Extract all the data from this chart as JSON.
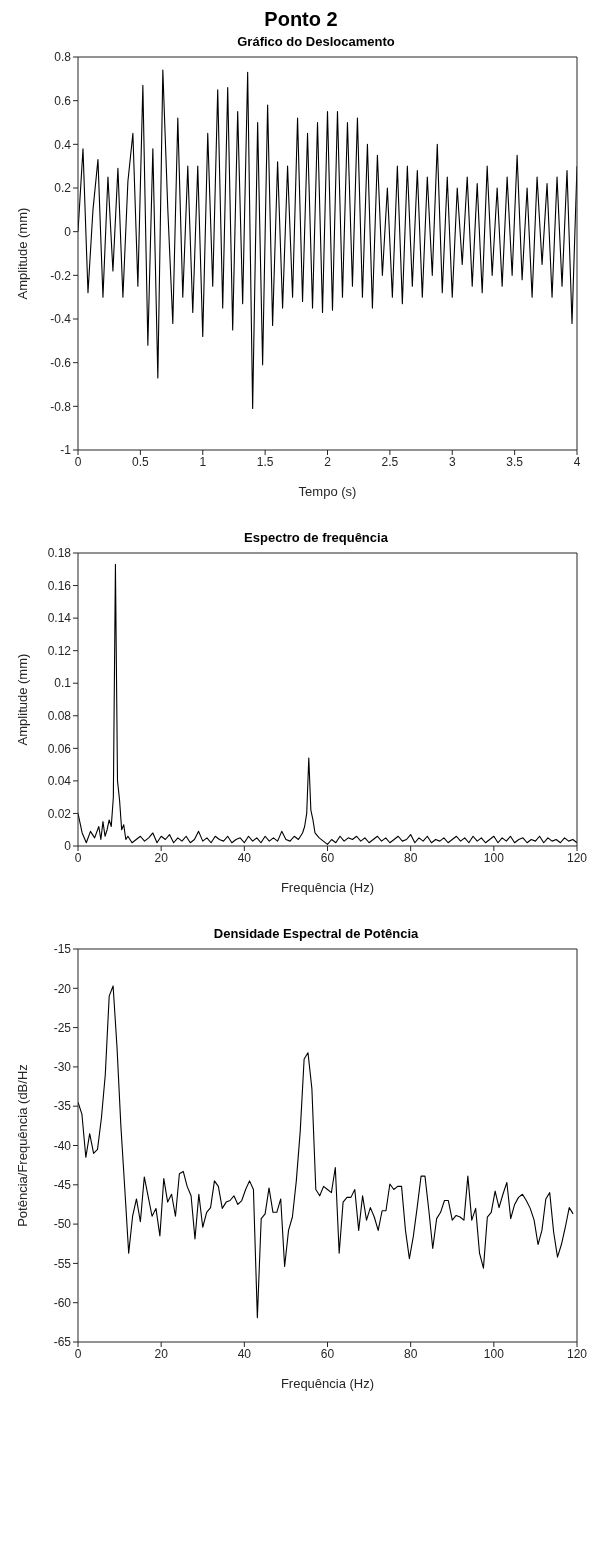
{
  "chart_data": [
    {
      "type": "line",
      "title": "Ponto 2",
      "subtitle": "Gráfico do Deslocamento",
      "xlabel": "Tempo (s)",
      "ylabel": "Amplitude (mm)",
      "xlim": [
        0,
        4
      ],
      "xticks": [
        0,
        0.5,
        1,
        1.5,
        2,
        2.5,
        3,
        3.5,
        4
      ],
      "ylim": [
        -1,
        0.8
      ],
      "yticks": [
        -1,
        -0.8,
        -0.6,
        -0.4,
        -0.2,
        0,
        0.2,
        0.4,
        0.6,
        0.8
      ],
      "x": [
        0,
        0.04,
        0.08,
        0.12,
        0.16,
        0.2,
        0.24,
        0.28,
        0.32,
        0.36,
        0.4,
        0.44,
        0.48,
        0.52,
        0.56,
        0.6,
        0.64,
        0.68,
        0.72,
        0.76,
        0.8,
        0.84,
        0.88,
        0.92,
        0.96,
        1,
        1.04,
        1.08,
        1.12,
        1.16,
        1.2,
        1.24,
        1.28,
        1.32,
        1.36,
        1.4,
        1.44,
        1.48,
        1.52,
        1.56,
        1.6,
        1.64,
        1.68,
        1.72,
        1.76,
        1.8,
        1.84,
        1.88,
        1.92,
        1.96,
        2,
        2.04,
        2.08,
        2.12,
        2.16,
        2.2,
        2.24,
        2.28,
        2.32,
        2.36,
        2.4,
        2.44,
        2.48,
        2.52,
        2.56,
        2.6,
        2.64,
        2.68,
        2.72,
        2.76,
        2.8,
        2.84,
        2.88,
        2.92,
        2.96,
        3,
        3.04,
        3.08,
        3.12,
        3.16,
        3.2,
        3.24,
        3.28,
        3.32,
        3.36,
        3.4,
        3.44,
        3.48,
        3.52,
        3.56,
        3.6,
        3.64,
        3.68,
        3.72,
        3.76,
        3.8,
        3.84,
        3.88,
        3.92,
        3.96,
        4
      ],
      "series": [
        {
          "color": "#000000",
          "values": [
            0,
            0.38,
            -0.28,
            0.1,
            0.33,
            -0.3,
            0.25,
            -0.18,
            0.29,
            -0.3,
            0.23,
            0.45,
            -0.25,
            0.67,
            -0.52,
            0.38,
            -0.67,
            0.74,
            0.1,
            -0.42,
            0.52,
            -0.3,
            0.3,
            -0.37,
            0.3,
            -0.48,
            0.45,
            -0.25,
            0.65,
            -0.35,
            0.66,
            -0.45,
            0.55,
            -0.33,
            0.73,
            -0.81,
            0.5,
            -0.61,
            0.58,
            -0.43,
            0.32,
            -0.35,
            0.3,
            -0.3,
            0.52,
            -0.32,
            0.45,
            -0.35,
            0.5,
            -0.37,
            0.55,
            -0.36,
            0.55,
            -0.3,
            0.5,
            -0.25,
            0.52,
            -0.3,
            0.4,
            -0.35,
            0.35,
            -0.2,
            0.2,
            -0.3,
            0.3,
            -0.33,
            0.3,
            -0.25,
            0.28,
            -0.3,
            0.25,
            -0.2,
            0.4,
            -0.28,
            0.25,
            -0.3,
            0.2,
            -0.15,
            0.25,
            -0.25,
            0.22,
            -0.28,
            0.3,
            -0.2,
            0.2,
            -0.25,
            0.25,
            -0.2,
            0.35,
            -0.22,
            0.2,
            -0.3,
            0.25,
            -0.15,
            0.22,
            -0.3,
            0.25,
            -0.25,
            0.28,
            -0.42,
            0.3
          ]
        }
      ]
    },
    {
      "type": "line",
      "title": "Espectro de frequência",
      "xlabel": "Frequência (Hz)",
      "ylabel": "Amplitude (mm)",
      "xlim": [
        0,
        120
      ],
      "xticks": [
        0,
        20,
        40,
        60,
        80,
        100,
        120
      ],
      "ylim": [
        0,
        0.18
      ],
      "yticks": [
        0,
        0.02,
        0.04,
        0.06,
        0.08,
        0.1,
        0.12,
        0.14,
        0.16,
        0.18
      ],
      "x": [
        0,
        1,
        2,
        3,
        4,
        5,
        5.5,
        6,
        6.5,
        7,
        7.5,
        8,
        8.5,
        9,
        9.5,
        10,
        10.5,
        11,
        11.5,
        12,
        13,
        14,
        15,
        16,
        17,
        18,
        19,
        20,
        21,
        22,
        23,
        24,
        25,
        26,
        27,
        28,
        29,
        30,
        31,
        32,
        33,
        34,
        35,
        36,
        37,
        38,
        39,
        40,
        41,
        42,
        43,
        44,
        45,
        46,
        47,
        48,
        49,
        50,
        51,
        52,
        53,
        54,
        54.5,
        55,
        55.5,
        56,
        56.5,
        57,
        58,
        59,
        60,
        61,
        62,
        63,
        64,
        65,
        66,
        67,
        68,
        69,
        70,
        71,
        72,
        73,
        74,
        75,
        76,
        77,
        78,
        79,
        80,
        81,
        82,
        83,
        84,
        85,
        86,
        87,
        88,
        89,
        90,
        91,
        92,
        93,
        94,
        95,
        96,
        97,
        98,
        99,
        100,
        101,
        102,
        103,
        104,
        105,
        106,
        107,
        108,
        109,
        110,
        111,
        112,
        113,
        114,
        115,
        116,
        117,
        118,
        119,
        120
      ],
      "series": [
        {
          "color": "#000000",
          "values": [
            0.02,
            0.008,
            0.002,
            0.009,
            0.005,
            0.012,
            0.004,
            0.015,
            0.006,
            0.01,
            0.016,
            0.012,
            0.03,
            0.173,
            0.04,
            0.028,
            0.01,
            0.013,
            0.004,
            0.006,
            0.002,
            0.004,
            0.006,
            0.003,
            0.005,
            0.008,
            0.002,
            0.006,
            0.004,
            0.007,
            0.002,
            0.005,
            0.003,
            0.006,
            0.002,
            0.004,
            0.009,
            0.003,
            0.005,
            0.002,
            0.006,
            0.004,
            0.003,
            0.006,
            0.002,
            0.004,
            0.005,
            0.002,
            0.006,
            0.003,
            0.005,
            0.002,
            0.006,
            0.003,
            0.005,
            0.003,
            0.009,
            0.004,
            0.003,
            0.006,
            0.004,
            0.008,
            0.012,
            0.02,
            0.054,
            0.022,
            0.016,
            0.008,
            0.005,
            0.003,
            0.001,
            0.004,
            0.002,
            0.006,
            0.003,
            0.005,
            0.004,
            0.006,
            0.003,
            0.005,
            0.002,
            0.004,
            0.006,
            0.003,
            0.005,
            0.002,
            0.004,
            0.006,
            0.003,
            0.004,
            0.007,
            0.002,
            0.005,
            0.003,
            0.006,
            0.002,
            0.004,
            0.003,
            0.005,
            0.002,
            0.004,
            0.006,
            0.003,
            0.005,
            0.002,
            0.006,
            0.003,
            0.005,
            0.002,
            0.004,
            0.006,
            0.002,
            0.005,
            0.003,
            0.006,
            0.002,
            0.004,
            0.005,
            0.002,
            0.004,
            0.003,
            0.006,
            0.002,
            0.005,
            0.003,
            0.004,
            0.002,
            0.005,
            0.003,
            0.004,
            0.002
          ]
        }
      ]
    },
    {
      "type": "line",
      "title": "Densidade Espectral de Potência",
      "xlabel": "Frequência (Hz)",
      "ylabel": "Potência/Frequência (dB/Hz",
      "xlim": [
        0,
        120
      ],
      "xticks": [
        0,
        20,
        40,
        60,
        80,
        100,
        120
      ],
      "ylim": [
        -65,
        -15
      ],
      "yticks": [
        -65,
        -60,
        -55,
        -50,
        -45,
        -40,
        -35,
        -30,
        -25,
        -20,
        -15
      ],
      "x": [
        0,
        0.94,
        1.88,
        2.81,
        3.75,
        4.69,
        5.63,
        6.56,
        7.5,
        8.44,
        9.38,
        10.31,
        11.25,
        12.19,
        13.13,
        14.06,
        15,
        15.94,
        16.88,
        17.81,
        18.75,
        19.69,
        20.63,
        21.56,
        22.5,
        23.44,
        24.38,
        25.31,
        26.25,
        27.19,
        28.13,
        29.06,
        30,
        30.94,
        31.88,
        32.81,
        33.75,
        34.69,
        35.63,
        36.56,
        37.5,
        38.44,
        39.38,
        40.31,
        41.25,
        42.19,
        43.13,
        44.06,
        45,
        45.94,
        46.88,
        47.81,
        48.75,
        49.69,
        50.63,
        51.56,
        52.5,
        53.44,
        54.38,
        55.31,
        56.25,
        57.19,
        58.13,
        59.06,
        60,
        60.94,
        61.88,
        62.81,
        63.75,
        64.69,
        65.63,
        66.56,
        67.5,
        68.44,
        69.38,
        70.31,
        71.25,
        72.19,
        73.13,
        74.06,
        75,
        75.94,
        76.88,
        77.81,
        78.75,
        79.69,
        80.63,
        81.56,
        82.5,
        83.44,
        84.38,
        85.31,
        86.25,
        87.19,
        88.13,
        89.06,
        90,
        90.94,
        91.88,
        92.81,
        93.75,
        94.69,
        95.63,
        96.56,
        97.5,
        98.44,
        99.38,
        100.31,
        101.25,
        102.19,
        103.13,
        104.06,
        105,
        105.94,
        106.88,
        107.81,
        108.75,
        109.69,
        110.63,
        111.56,
        112.5,
        113.44,
        114.38,
        115.31,
        116.25,
        117.19,
        118.13,
        119.06
      ],
      "series": [
        {
          "color": "#000000",
          "values": [
            -34.5,
            -36,
            -41.5,
            -38.5,
            -41,
            -40.5,
            -36.5,
            -31,
            -21,
            -19.7,
            -27.5,
            -37.5,
            -45.5,
            -53.7,
            -49,
            -46.8,
            -49.7,
            -44,
            -46.5,
            -49,
            -48,
            -51.5,
            -44.2,
            -47.2,
            -46.2,
            -49,
            -43.6,
            -43.3,
            -45.2,
            -46.4,
            -51.9,
            -46.2,
            -50.4,
            -48.5,
            -47.9,
            -44.5,
            -45.2,
            -48,
            -47.2,
            -47,
            -46.4,
            -47.5,
            -47,
            -45.6,
            -44.5,
            -45.6,
            -61.9,
            -49.3,
            -48.7,
            -45.4,
            -48.5,
            -48.5,
            -46.8,
            -55.4,
            -50.8,
            -49.1,
            -44.5,
            -38.2,
            -29,
            -28.2,
            -32.8,
            -45.6,
            -46.4,
            -45.2,
            -45.6,
            -46,
            -42.8,
            -53.7,
            -47.2,
            -46.6,
            -46.6,
            -45.6,
            -50.8,
            -46.4,
            -49.5,
            -47.9,
            -49.1,
            -50.8,
            -48.3,
            -48.3,
            -44.9,
            -45.6,
            -45.2,
            -45.2,
            -50.8,
            -54.4,
            -51.6,
            -47.9,
            -43.9,
            -43.9,
            -48.3,
            -53.1,
            -49.3,
            -48.5,
            -47,
            -47,
            -49.5,
            -48.9,
            -49.1,
            -49.5,
            -43.9,
            -49.5,
            -48,
            -53.7,
            -55.6,
            -49.1,
            -48.5,
            -45.8,
            -47.9,
            -46.2,
            -44.7,
            -49.3,
            -47.5,
            -46.6,
            -46.2,
            -47,
            -48,
            -49.5,
            -52.6,
            -50.8,
            -46.8,
            -46,
            -51,
            -54.2,
            -52.6,
            -50.4,
            -47.9,
            -48.7
          ]
        }
      ]
    }
  ]
}
